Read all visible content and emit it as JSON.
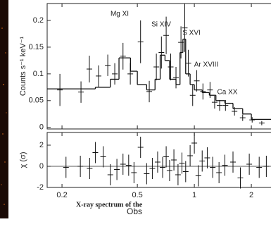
{
  "chart_data": [
    {
      "type": "errorbar",
      "ylabel": "Counts s⁻¹ keV⁻¹",
      "log_x": true,
      "xlim": [
        0.167,
        2.54
      ],
      "xticks": [
        0.2,
        0.5,
        1,
        2
      ],
      "ylim": [
        -0.003,
        0.2316
      ],
      "yticks": [
        0,
        0.05,
        0.1,
        0.15,
        0.2
      ],
      "x": [
        0.195,
        0.252,
        0.279,
        0.312,
        0.349,
        0.38,
        0.42,
        0.459,
        0.52,
        0.578,
        0.63,
        0.67,
        0.71,
        0.75,
        0.8,
        0.85,
        0.89,
        0.93,
        0.98,
        1.03,
        1.11,
        1.21,
        1.28,
        1.36,
        1.46,
        1.63,
        1.8,
        2.02,
        2.27
      ],
      "values": [
        0.07,
        0.066,
        0.109,
        0.096,
        0.116,
        0.1,
        0.133,
        0.1,
        0.16,
        0.067,
        0.113,
        0.14,
        0.172,
        0.113,
        0.093,
        0.159,
        0.186,
        0.12,
        0.06,
        0.087,
        0.067,
        0.07,
        0.047,
        0.041,
        0.041,
        0.03,
        0.018,
        0.014,
        0.008
      ],
      "errors": [
        0.03,
        0.02,
        0.025,
        0.02,
        0.02,
        0.02,
        0.025,
        0.02,
        0.04,
        0.02,
        0.025,
        0.03,
        0.035,
        0.025,
        0.02,
        0.03,
        0.045,
        0.025,
        0.02,
        0.02,
        0.015,
        0.015,
        0.012,
        0.01,
        0.01,
        0.008,
        0.006,
        0.005,
        0.004
      ],
      "model": {
        "bins": [
          0.167,
          0.3,
          0.36,
          0.4,
          0.46,
          0.5,
          0.56,
          0.62,
          0.66,
          0.7,
          0.74,
          0.8,
          0.84,
          0.87,
          0.9,
          0.95,
          1.0,
          1.1,
          1.2,
          1.3,
          1.45,
          1.6,
          1.8,
          2.0,
          2.54
        ],
        "values": [
          0.072,
          0.075,
          0.09,
          0.13,
          0.105,
          0.08,
          0.07,
          0.09,
          0.135,
          0.125,
          0.09,
          0.08,
          0.14,
          0.165,
          0.1,
          0.08,
          0.07,
          0.065,
          0.06,
          0.05,
          0.045,
          0.035,
          0.025,
          0.015
        ]
      },
      "annotations": [
        "Mg XI",
        "Si XIV",
        "S XVI",
        "Ar XVIII",
        "Ca XX"
      ]
    },
    {
      "type": "errorbar",
      "ylabel": "χ (σ)",
      "xlabel": "Obs",
      "log_x": true,
      "xlim": [
        0.167,
        2.54
      ],
      "xticks": [
        0.2,
        0.5,
        1,
        2
      ],
      "ylim": [
        -2.0,
        3.2
      ],
      "yticks": [
        2,
        0,
        -2
      ],
      "x": [
        0.21,
        0.25,
        0.28,
        0.3,
        0.33,
        0.36,
        0.39,
        0.42,
        0.45,
        0.48,
        0.52,
        0.56,
        0.6,
        0.64,
        0.68,
        0.71,
        0.74,
        0.78,
        0.82,
        0.86,
        0.9,
        0.95,
        1.0,
        1.05,
        1.1,
        1.17,
        1.25,
        1.35,
        1.45,
        1.6,
        1.75,
        1.95,
        2.2,
        2.4
      ],
      "values": [
        -0.1,
        0,
        -0.2,
        1.3,
        0.9,
        -0.8,
        -0.3,
        0.2,
        0.1,
        -0.6,
        1.8,
        -0.7,
        -0.2,
        0.4,
        -0.1,
        0.9,
        -0.4,
        0.6,
        -0.8,
        0.3,
        -0.5,
        1.0,
        2.2,
        -0.9,
        0.5,
        0.8,
        -0.1,
        -0.6,
        0.1,
        0.4,
        -1.1,
        0.2,
        -0.1,
        0
      ],
      "errors": [
        1,
        1,
        1,
        1,
        1,
        1,
        1,
        1,
        1,
        1,
        1,
        1,
        1,
        1,
        1,
        1,
        1,
        1,
        1,
        1,
        1,
        1,
        1,
        1,
        1,
        1,
        1,
        1,
        1,
        1,
        1,
        1,
        1,
        1
      ]
    }
  ],
  "caption": "X-ray spectrum of the"
}
